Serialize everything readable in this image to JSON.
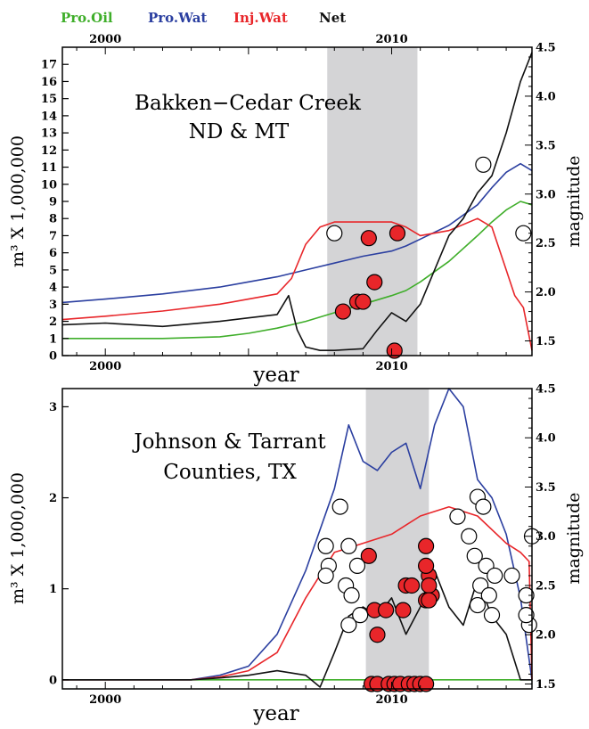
{
  "legend": [
    {
      "label": "Pro.Oil",
      "color": "#3fae2a"
    },
    {
      "label": "Pro.Wat",
      "color": "#2b3fa0"
    },
    {
      "label": "Inj.Wat",
      "color": "#e8262a"
    },
    {
      "label": "Net",
      "color": "#111111"
    }
  ],
  "chart_data": [
    {
      "type": "line",
      "annotation": [
        "Bakken−Cedar Creek",
        "ND & MT"
      ],
      "xlabel": "year",
      "ylabel_left": "m³ X 1,000,000",
      "ylabel_right": "magnitude",
      "xlim": [
        1998.5,
        2014.9
      ],
      "ylim_left": [
        0,
        18
      ],
      "ylim_right": [
        1.35,
        4.5
      ],
      "x_top_ticks": [
        "2000",
        "2010"
      ],
      "x_bottom_ticks": [
        "2000",
        "2010"
      ],
      "y_left_ticks": [
        "0",
        "1",
        "2",
        "3",
        "4",
        "5",
        "6",
        "7",
        "8",
        "9",
        "10",
        "11",
        "12",
        "13",
        "14",
        "15",
        "16",
        "17"
      ],
      "y_right_ticks": [
        "1.5",
        "2.0",
        "2.5",
        "3.0",
        "3.5",
        "4.0",
        "4.5"
      ],
      "shaded_period": [
        2007.75,
        2010.9
      ],
      "series": [
        {
          "name": "Pro.Oil",
          "color": "#3fae2a",
          "x": [
            1998.5,
            2000,
            2002,
            2004,
            2005,
            2006,
            2007,
            2008,
            2009,
            2010,
            2010.5,
            2011,
            2012,
            2013,
            2013.5,
            2014,
            2014.5,
            2014.9
          ],
          "y": [
            1.0,
            1.0,
            1.0,
            1.1,
            1.3,
            1.6,
            2.0,
            2.5,
            3.0,
            3.5,
            3.8,
            4.3,
            5.5,
            7.0,
            7.8,
            8.5,
            9.0,
            8.8
          ]
        },
        {
          "name": "Pro.Wat",
          "color": "#2b3fa0",
          "x": [
            1998.5,
            2000,
            2002,
            2004,
            2005,
            2006,
            2007,
            2008,
            2009,
            2010,
            2010.5,
            2011,
            2012,
            2013,
            2013.5,
            2014,
            2014.5,
            2014.9
          ],
          "y": [
            3.1,
            3.3,
            3.6,
            4.0,
            4.3,
            4.6,
            5.0,
            5.4,
            5.8,
            6.1,
            6.4,
            6.8,
            7.6,
            8.8,
            9.8,
            10.7,
            11.2,
            10.8
          ]
        },
        {
          "name": "Inj.Wat",
          "color": "#e8262a",
          "x": [
            1998.5,
            2000,
            2002,
            2004,
            2005,
            2006,
            2006.5,
            2007,
            2007.5,
            2008,
            2009,
            2010,
            2010.5,
            2011,
            2012,
            2013,
            2013.5,
            2014,
            2014.3,
            2014.6,
            2014.9
          ],
          "y": [
            2.1,
            2.3,
            2.6,
            3.0,
            3.3,
            3.6,
            4.5,
            6.5,
            7.5,
            7.8,
            7.8,
            7.8,
            7.5,
            7.0,
            7.3,
            8.0,
            7.5,
            5.0,
            3.5,
            2.8,
            0.3
          ]
        },
        {
          "name": "Net",
          "color": "#111111",
          "x": [
            1998.5,
            2000,
            2002,
            2004,
            2005,
            2006,
            2006.4,
            2006.7,
            2007,
            2007.5,
            2008,
            2009,
            2009.5,
            2010,
            2010.5,
            2011,
            2011.5,
            2012,
            2012.5,
            2013,
            2013.5,
            2014,
            2014.5,
            2014.9
          ],
          "y": [
            1.8,
            1.9,
            1.7,
            2.0,
            2.2,
            2.4,
            3.5,
            1.5,
            0.5,
            0.3,
            0.3,
            0.4,
            1.5,
            2.5,
            2.0,
            3.0,
            5.0,
            7.0,
            8.0,
            9.5,
            10.5,
            13.0,
            16.0,
            17.7
          ]
        }
      ],
      "events_filled": [
        {
          "x": 2008.3,
          "m": 1.8
        },
        {
          "x": 2008.8,
          "m": 1.9
        },
        {
          "x": 2009.0,
          "m": 1.9
        },
        {
          "x": 2009.4,
          "m": 2.1
        },
        {
          "x": 2009.2,
          "m": 2.55
        },
        {
          "x": 2010.2,
          "m": 2.6
        },
        {
          "x": 2010.1,
          "m": 1.4
        }
      ],
      "events_open": [
        {
          "x": 2008.0,
          "m": 2.6
        },
        {
          "x": 2013.2,
          "m": 3.3
        },
        {
          "x": 2014.6,
          "m": 2.6
        }
      ]
    },
    {
      "type": "line",
      "annotation": [
        "Johnson & Tarrant",
        "Counties, TX"
      ],
      "xlabel": "year",
      "ylabel_left": "m³ X 1,000,000",
      "ylabel_right": "magnitude",
      "xlim": [
        1998.5,
        2014.9
      ],
      "ylim_left": [
        -0.1,
        3.2
      ],
      "ylim_right": [
        1.45,
        4.5
      ],
      "x_bottom_ticks": [
        "2000",
        "2010"
      ],
      "y_left_ticks": [
        "0",
        "1",
        "2",
        "3"
      ],
      "y_right_ticks": [
        "1.5",
        "2.0",
        "2.5",
        "3.0",
        "3.5",
        "4.0",
        "4.5"
      ],
      "shaded_period": [
        2009.1,
        2011.3
      ],
      "series": [
        {
          "name": "Pro.Oil",
          "color": "#3fae2a",
          "x": [
            1998.5,
            2014.9
          ],
          "y": [
            0.0,
            0.0
          ]
        },
        {
          "name": "Pro.Wat",
          "color": "#2b3fa0",
          "x": [
            1998.5,
            2003,
            2004,
            2005,
            2006,
            2007,
            2008,
            2008.5,
            2009,
            2009.5,
            2010,
            2010.5,
            2011,
            2011.5,
            2012,
            2012.5,
            2013,
            2013.5,
            2014,
            2014.5,
            2014.9
          ],
          "y": [
            0.0,
            0.0,
            0.05,
            0.15,
            0.5,
            1.2,
            2.1,
            2.8,
            2.4,
            2.3,
            2.5,
            2.6,
            2.1,
            2.8,
            3.2,
            3.0,
            2.2,
            2.0,
            1.6,
            0.9,
            0.0
          ]
        },
        {
          "name": "Inj.Wat",
          "color": "#e8262a",
          "x": [
            1998.5,
            2003,
            2004,
            2005,
            2006,
            2007,
            2008,
            2009,
            2010,
            2010.5,
            2011,
            2012,
            2013,
            2014,
            2014.5,
            2014.8,
            2014.9
          ],
          "y": [
            0.0,
            0.0,
            0.03,
            0.1,
            0.3,
            0.9,
            1.4,
            1.5,
            1.6,
            1.7,
            1.8,
            1.9,
            1.8,
            1.5,
            1.4,
            1.3,
            0.0
          ]
        },
        {
          "name": "Net",
          "color": "#111111",
          "x": [
            1998.5,
            2003,
            2004,
            2005,
            2006,
            2007,
            2007.5,
            2008,
            2008.5,
            2009,
            2009.5,
            2010,
            2010.5,
            2011,
            2011.5,
            2012,
            2012.5,
            2013,
            2013.5,
            2014,
            2014.5,
            2014.9
          ],
          "y": [
            0.0,
            0.0,
            0.02,
            0.05,
            0.1,
            0.05,
            -0.08,
            0.3,
            0.7,
            0.8,
            0.7,
            0.9,
            0.5,
            0.8,
            1.2,
            0.8,
            0.6,
            1.1,
            0.7,
            0.5,
            0.0,
            0.0
          ]
        }
      ],
      "events_filled": [
        {
          "x": 2009.2,
          "m": 2.8
        },
        {
          "x": 2009.4,
          "m": 2.25
        },
        {
          "x": 2009.5,
          "m": 2.0
        },
        {
          "x": 2009.8,
          "m": 2.25
        },
        {
          "x": 2010.4,
          "m": 2.25
        },
        {
          "x": 2010.5,
          "m": 2.5
        },
        {
          "x": 2010.7,
          "m": 2.5
        },
        {
          "x": 2011.2,
          "m": 2.35
        },
        {
          "x": 2011.3,
          "m": 2.6
        },
        {
          "x": 2011.2,
          "m": 2.7
        },
        {
          "x": 2011.4,
          "m": 2.4
        },
        {
          "x": 2011.3,
          "m": 2.5
        },
        {
          "x": 2011.2,
          "m": 2.9
        },
        {
          "x": 2011.3,
          "m": 2.35
        },
        {
          "x": 2009.3,
          "m": 1.5
        },
        {
          "x": 2009.5,
          "m": 1.5
        },
        {
          "x": 2009.9,
          "m": 1.5
        },
        {
          "x": 2010.1,
          "m": 1.5
        },
        {
          "x": 2010.3,
          "m": 1.5
        },
        {
          "x": 2010.6,
          "m": 1.5
        },
        {
          "x": 2010.8,
          "m": 1.5
        },
        {
          "x": 2011.0,
          "m": 1.5
        },
        {
          "x": 2011.2,
          "m": 1.5
        }
      ],
      "events_open": [
        {
          "x": 2007.7,
          "m": 2.9
        },
        {
          "x": 2007.8,
          "m": 2.7
        },
        {
          "x": 2007.7,
          "m": 2.6
        },
        {
          "x": 2008.2,
          "m": 3.3
        },
        {
          "x": 2008.5,
          "m": 2.9
        },
        {
          "x": 2008.4,
          "m": 2.5
        },
        {
          "x": 2008.6,
          "m": 2.4
        },
        {
          "x": 2008.8,
          "m": 2.7
        },
        {
          "x": 2008.5,
          "m": 2.1
        },
        {
          "x": 2008.9,
          "m": 2.2
        },
        {
          "x": 2012.3,
          "m": 3.2
        },
        {
          "x": 2012.7,
          "m": 3.0
        },
        {
          "x": 2013.0,
          "m": 3.4
        },
        {
          "x": 2013.2,
          "m": 3.3
        },
        {
          "x": 2012.9,
          "m": 2.8
        },
        {
          "x": 2013.3,
          "m": 2.7
        },
        {
          "x": 2013.1,
          "m": 2.5
        },
        {
          "x": 2013.4,
          "m": 2.4
        },
        {
          "x": 2013.0,
          "m": 2.3
        },
        {
          "x": 2013.5,
          "m": 2.2
        },
        {
          "x": 2013.6,
          "m": 2.6
        },
        {
          "x": 2014.2,
          "m": 2.6
        },
        {
          "x": 2014.7,
          "m": 2.4
        },
        {
          "x": 2014.8,
          "m": 2.1
        },
        {
          "x": 2014.7,
          "m": 2.2
        },
        {
          "x": 2014.9,
          "m": 3.0
        }
      ]
    }
  ]
}
